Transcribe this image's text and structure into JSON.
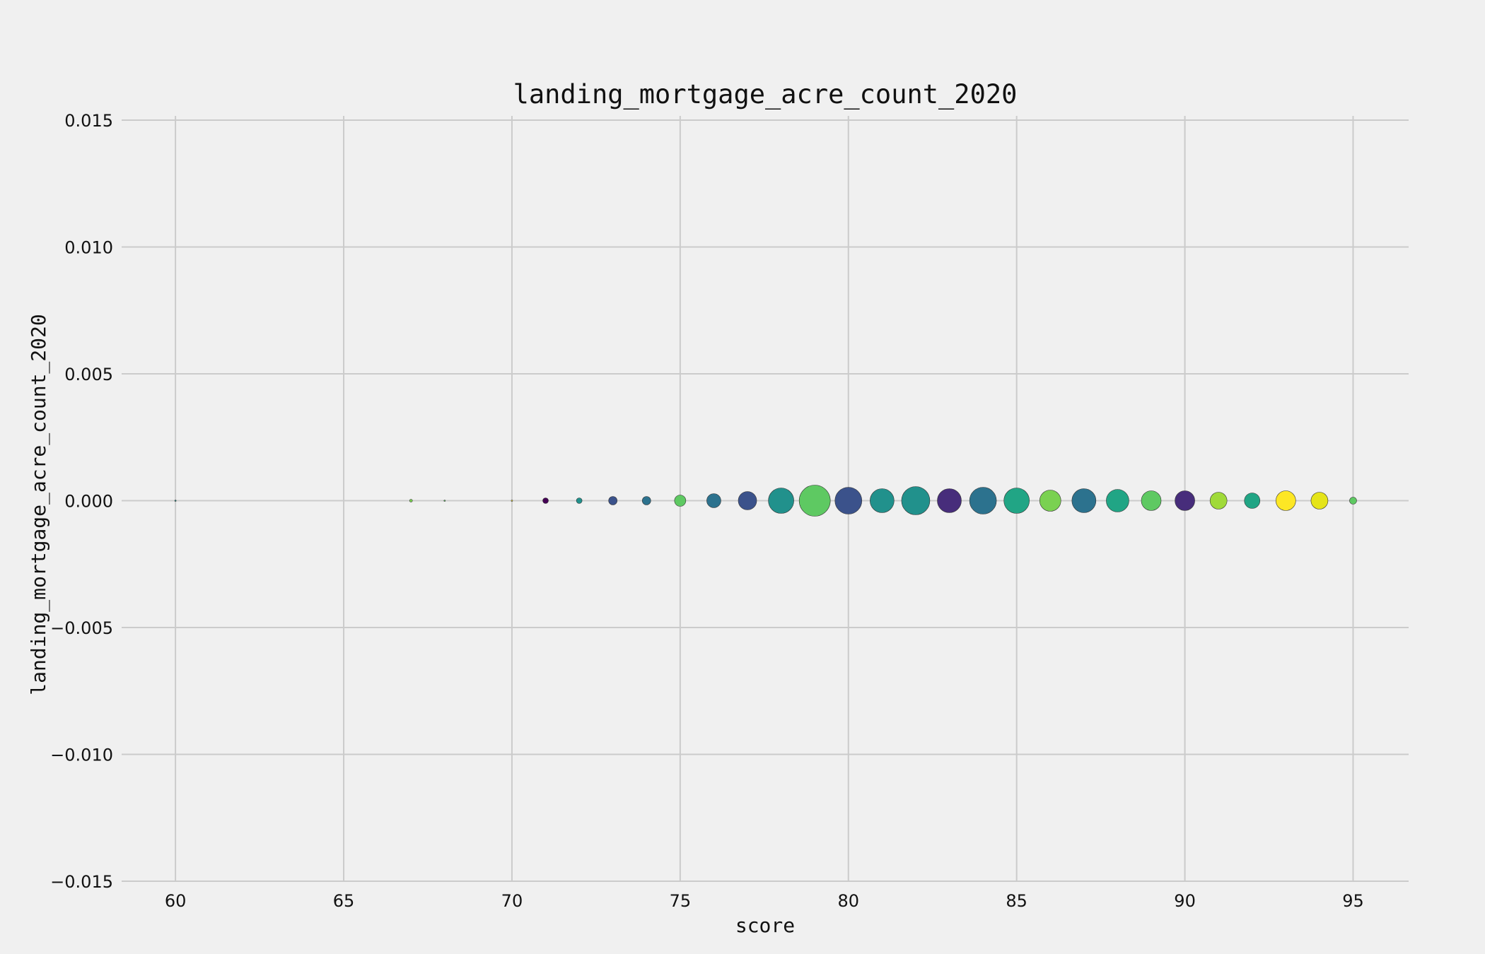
{
  "chart_data": {
    "type": "scatter",
    "title": "landing_mortgage_acre_count_2020",
    "xlabel": "score",
    "ylabel": "landing_mortgage_acre_count_2020",
    "xlim": [
      58.4,
      96.65
    ],
    "ylim": [
      -0.015,
      0.015
    ],
    "x_ticks": [
      60,
      65,
      70,
      75,
      80,
      85,
      90,
      95
    ],
    "x_tick_labels": [
      "60",
      "65",
      "70",
      "75",
      "80",
      "85",
      "90",
      "95"
    ],
    "y_ticks": [
      0.015,
      0.01,
      0.005,
      0.0,
      -0.005,
      -0.01,
      -0.015
    ],
    "y_tick_labels": [
      "0.015",
      "0.010",
      "0.005",
      "0.000",
      "−0.005",
      "−0.010",
      "−0.015"
    ],
    "grid": true,
    "colormap": "viridis",
    "points": [
      {
        "x": 60,
        "y": 0,
        "size": 1,
        "color": "#21918c"
      },
      {
        "x": 67,
        "y": 0,
        "size": 2,
        "color": "#7ad151"
      },
      {
        "x": 68,
        "y": 0,
        "size": 1,
        "color": "#5ec962"
      },
      {
        "x": 70,
        "y": 0,
        "size": 1,
        "color": "#fde725"
      },
      {
        "x": 71,
        "y": 0,
        "size": 4,
        "color": "#440154"
      },
      {
        "x": 72,
        "y": 0,
        "size": 4,
        "color": "#21918c"
      },
      {
        "x": 73,
        "y": 0,
        "size": 6,
        "color": "#3b528b"
      },
      {
        "x": 74,
        "y": 0,
        "size": 6,
        "color": "#2c728e"
      },
      {
        "x": 75,
        "y": 0,
        "size": 8,
        "color": "#5ec962"
      },
      {
        "x": 76,
        "y": 0,
        "size": 10,
        "color": "#2c728e"
      },
      {
        "x": 77,
        "y": 0,
        "size": 13,
        "color": "#3b528b"
      },
      {
        "x": 78,
        "y": 0,
        "size": 18,
        "color": "#21918c"
      },
      {
        "x": 79,
        "y": 0,
        "size": 22,
        "color": "#5ec962"
      },
      {
        "x": 80,
        "y": 0,
        "size": 19,
        "color": "#3b528b"
      },
      {
        "x": 81,
        "y": 0,
        "size": 17,
        "color": "#21918c"
      },
      {
        "x": 82,
        "y": 0,
        "size": 20,
        "color": "#21918c"
      },
      {
        "x": 83,
        "y": 0,
        "size": 17,
        "color": "#472d7b"
      },
      {
        "x": 84,
        "y": 0,
        "size": 19,
        "color": "#2c728e"
      },
      {
        "x": 85,
        "y": 0,
        "size": 18,
        "color": "#21a585"
      },
      {
        "x": 86,
        "y": 0,
        "size": 15,
        "color": "#7ad151"
      },
      {
        "x": 87,
        "y": 0,
        "size": 17,
        "color": "#2c728e"
      },
      {
        "x": 88,
        "y": 0,
        "size": 16,
        "color": "#21a585"
      },
      {
        "x": 89,
        "y": 0,
        "size": 14,
        "color": "#5ec962"
      },
      {
        "x": 90,
        "y": 0,
        "size": 14,
        "color": "#472d7b"
      },
      {
        "x": 91,
        "y": 0,
        "size": 12,
        "color": "#a0da39"
      },
      {
        "x": 92,
        "y": 0,
        "size": 11,
        "color": "#21a585"
      },
      {
        "x": 93,
        "y": 0,
        "size": 14,
        "color": "#fde725"
      },
      {
        "x": 94,
        "y": 0,
        "size": 12,
        "color": "#e5e419"
      },
      {
        "x": 95,
        "y": 0,
        "size": 5,
        "color": "#5ec962"
      }
    ]
  }
}
